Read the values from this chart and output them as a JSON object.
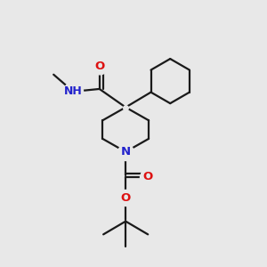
{
  "background_color": "#e8e8e8",
  "bond_color": "#1a1a1a",
  "nitrogen_color": "#2222cc",
  "oxygen_color": "#dd1111",
  "line_width": 1.6,
  "figsize": [
    3.0,
    3.0
  ],
  "dpi": 100,
  "xlim": [
    0,
    1
  ],
  "ylim": [
    0,
    1
  ]
}
